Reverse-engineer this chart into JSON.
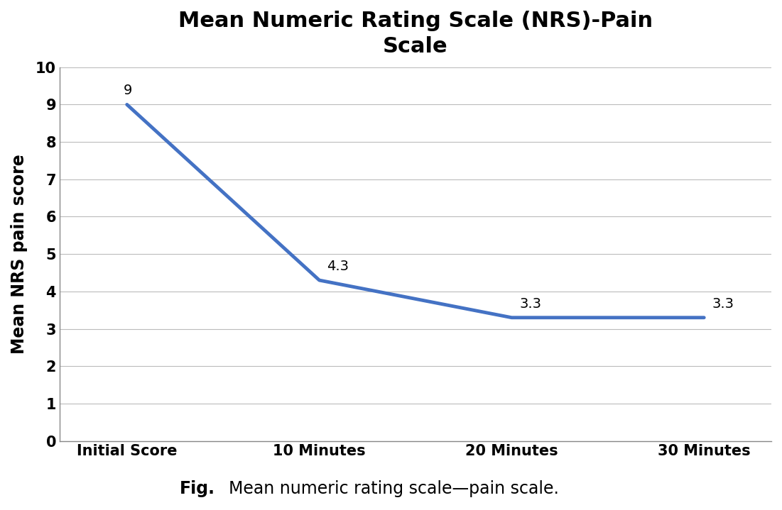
{
  "title": "Mean Numeric Rating Scale (NRS)-Pain\nScale",
  "ylabel": "Mean NRS pain score",
  "categories": [
    "Initial Score",
    "10 Minutes",
    "20 Minutes",
    "30 Minutes"
  ],
  "values": [
    9.0,
    4.3,
    3.3,
    3.3
  ],
  "annotations": [
    "9",
    "4.3",
    "3.3",
    "3.3"
  ],
  "ylim": [
    0,
    10
  ],
  "yticks": [
    0,
    1,
    2,
    3,
    4,
    5,
    6,
    7,
    8,
    9,
    10
  ],
  "line_color": "#4472C4",
  "line_width": 3.5,
  "title_fontsize": 22,
  "axis_label_fontsize": 17,
  "tick_label_fontsize": 15,
  "annotation_fontsize": 14,
  "caption_bold": "Fig.",
  "caption_normal": "    Mean numeric rating scale—pain scale.",
  "caption_fontsize": 17,
  "background_color": "#ffffff",
  "grid_color": "#bbbbbb",
  "grid_linewidth": 0.8,
  "spine_color": "#888888"
}
